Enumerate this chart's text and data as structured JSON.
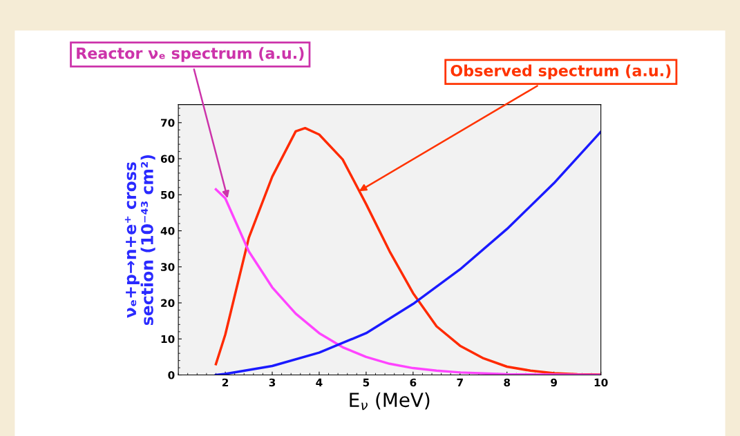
{
  "chart_data": {
    "type": "line",
    "xlabel": "E$_{ν}$ (MeV)",
    "ylabel": "νₑ+p→n+e⁺ cross\nsection (10⁻⁴³ cm²)",
    "xlim": [
      1,
      10
    ],
    "ylim": [
      0,
      75
    ],
    "xticks": [
      2,
      3,
      4,
      5,
      6,
      7,
      8,
      9,
      10
    ],
    "yticks": [
      0,
      10,
      20,
      30,
      40,
      50,
      60,
      70
    ],
    "grid": false,
    "legend": false,
    "marker": "none",
    "line_style": "solid",
    "series": [
      {
        "color": "#ff2a00",
        "x": [
          1.8,
          2.0,
          2.5,
          3.0,
          3.5,
          3.7,
          4.0,
          4.5,
          5.0,
          5.5,
          6.0,
          6.5,
          7.0,
          7.5,
          8.0,
          8.5,
          9.0,
          9.5,
          10.0
        ],
        "values": [
          3,
          11.2,
          38,
          55,
          67.6,
          68.5,
          66.7,
          59.8,
          47.4,
          34.3,
          22.7,
          13.5,
          8.1,
          4.6,
          2.3,
          1.2,
          0.5,
          0.2,
          0.1
        ]
      },
      {
        "color": "#ff44ff",
        "x": [
          1.8,
          2.0,
          2.5,
          3.0,
          3.5,
          4.0,
          4.5,
          5.0,
          5.5,
          6.0,
          6.5,
          7.0,
          8.0,
          9.0,
          10.0
        ],
        "values": [
          51.5,
          49,
          34.3,
          24.3,
          17,
          11.6,
          7.7,
          5,
          3.1,
          1.9,
          1.2,
          0.7,
          0.2,
          0.1,
          0
        ]
      },
      {
        "color": "#1a1aff",
        "x": [
          1.8,
          2.0,
          3.0,
          4.0,
          5.0,
          6.0,
          7.0,
          8.0,
          9.0,
          10.0
        ],
        "values": [
          0,
          0.3,
          2.5,
          6.2,
          11.6,
          19.7,
          29.3,
          40.5,
          53.2,
          67.5
        ]
      }
    ],
    "annotations": [
      {
        "text": "Reactor νₑ spectrum (a.u.)",
        "x": 2.05,
        "y": 49
      },
      {
        "text": "Observed spectrum (a.u.)",
        "x": 4.85,
        "y": 51
      }
    ]
  }
}
